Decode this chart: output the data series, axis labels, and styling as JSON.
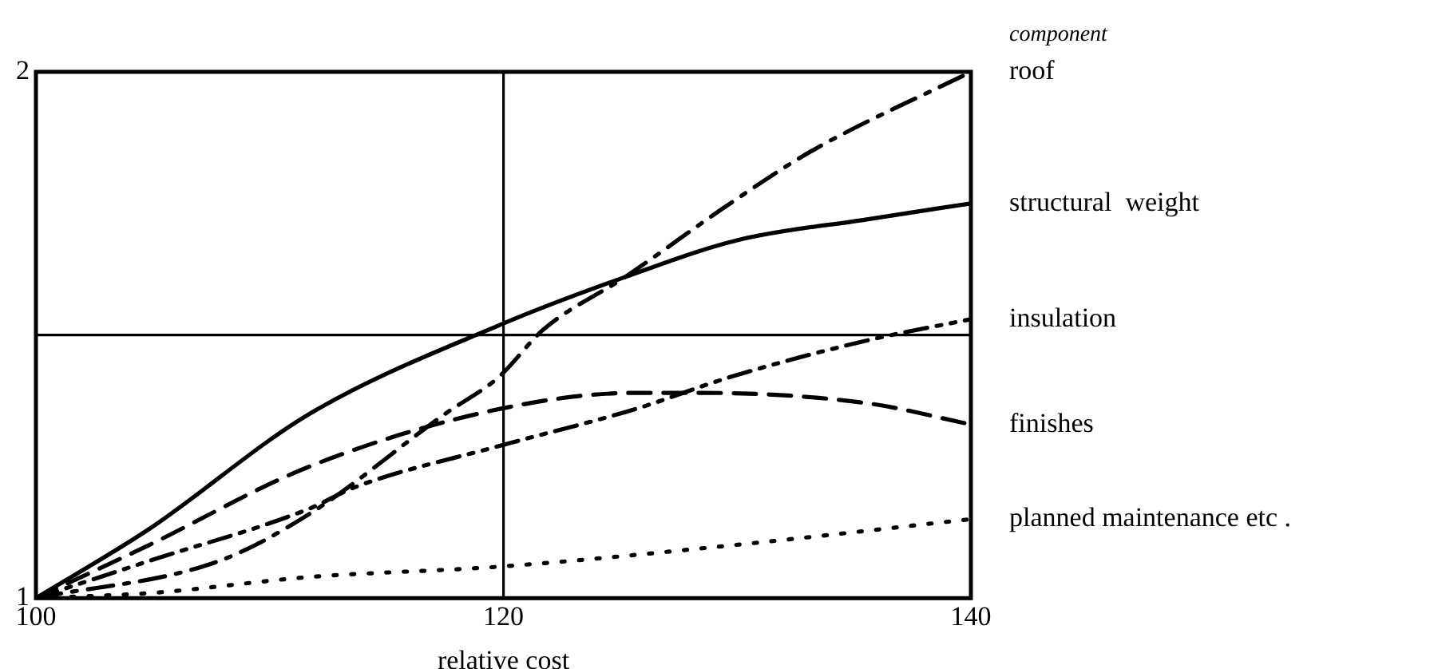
{
  "chart_data": {
    "type": "line",
    "xlabel": "relative cost",
    "legend_title": "component",
    "xlim": [
      100,
      140
    ],
    "xticks": [
      100,
      120,
      140
    ],
    "ylim": [
      1,
      2
    ],
    "yticks": [
      1,
      {
        "value": 1.5,
        "label": null
      },
      2
    ],
    "grid": true,
    "legend": false,
    "marker": "none",
    "series": [
      {
        "name": "roof",
        "color": "#000000",
        "line_style": "dashdot",
        "x": [
          100,
          107.8,
          111.7,
          117.5,
          119.8,
          121.7,
          125.2,
          129.7,
          133.2,
          140
        ],
        "values": [
          1,
          1.07,
          1.16,
          1.35,
          1.42,
          1.51,
          1.61,
          1.75,
          1.85,
          2
        ]
      },
      {
        "name": "structural  weight",
        "color": "#000000",
        "line_style": "solid",
        "x": [
          100,
          104.8,
          111.7,
          119.9,
          125.2,
          130,
          135.6,
          140
        ],
        "values": [
          1,
          1.13,
          1.35,
          1.52,
          1.61,
          1.68,
          1.72,
          1.75
        ]
      },
      {
        "name": "insulation",
        "color": "#000000",
        "line_style": "dashdotdot",
        "x": [
          100,
          104.8,
          111.7,
          113.6,
          119.9,
          125.7,
          129.7,
          135.6,
          140
        ],
        "values": [
          1,
          1.07,
          1.17,
          1.21,
          1.29,
          1.36,
          1.42,
          1.49,
          1.53
        ]
      },
      {
        "name": "finishes",
        "color": "#000000",
        "line_style": "dashed",
        "x": [
          100,
          104.8,
          111.7,
          119.9,
          125.7,
          128.5,
          135.6,
          140
        ],
        "values": [
          1,
          1.1,
          1.25,
          1.36,
          1.39,
          1.39,
          1.37,
          1.33
        ]
      },
      {
        "name": "planned maintenance etc .",
        "color": "#000000",
        "line_style": "dotted",
        "x": [
          100,
          105,
          111.7,
          119.9,
          129.7,
          140
        ],
        "values": [
          1,
          1.01,
          1.04,
          1.06,
          1.1,
          1.15
        ]
      }
    ]
  }
}
